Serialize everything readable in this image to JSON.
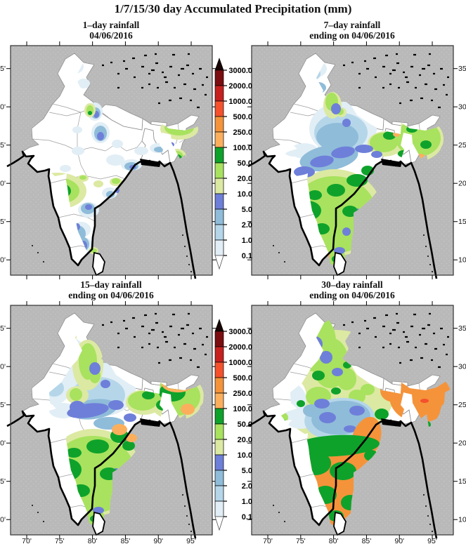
{
  "title": "1/7/15/30 day Accumulated Precipitation (mm)",
  "panels": [
    {
      "id": "p1",
      "title_line1": "1–day rainfall",
      "title_line2": "04/06/2016",
      "lat_side": "left",
      "lon_labels": false
    },
    {
      "id": "p2",
      "title_line1": "7–day rainfall",
      "title_line2": "ending on 04/06/2016",
      "lat_side": "right",
      "lon_labels": false
    },
    {
      "id": "p3",
      "title_line1": "15–day rainfall",
      "title_line2": "ending on 04/06/2016",
      "lat_side": "left",
      "lon_labels": true
    },
    {
      "id": "p4",
      "title_line1": "30–day rainfall",
      "title_line2": "ending on 04/06/2016",
      "lat_side": "right",
      "lon_labels": true
    }
  ],
  "axes": {
    "lat_ticks": [
      {
        "deg": 35,
        "label": "35'"
      },
      {
        "deg": 30,
        "label": "30'"
      },
      {
        "deg": 25,
        "label": "25'"
      },
      {
        "deg": 20,
        "label": "20'"
      },
      {
        "deg": 15,
        "label": "15'"
      },
      {
        "deg": 10,
        "label": "10'"
      }
    ],
    "lon_ticks": [
      {
        "deg": 70,
        "label": "70'"
      },
      {
        "deg": 75,
        "label": "75'"
      },
      {
        "deg": 80,
        "label": "80'"
      },
      {
        "deg": 85,
        "label": "85'"
      },
      {
        "deg": 90,
        "label": "90'"
      },
      {
        "deg": 95,
        "label": "95'"
      }
    ]
  },
  "legend": {
    "tick_labels": [
      "3000.0",
      "2000.0",
      "1000.0",
      "500.0",
      "250.0",
      "100.0",
      "50.0",
      "20.0",
      "10.0",
      "5.0",
      "2.0",
      "1.0",
      "0.1"
    ],
    "segment_colors_top_to_bottom": [
      "#7b0d10",
      "#c6201f",
      "#f4512c",
      "#f5933a",
      "#fbaf5d",
      "#0ea22b",
      "#a8e25e",
      "#dce9a2",
      "#6e7fd9",
      "#8fbcd9",
      "#b5d6e9",
      "#e1eef5"
    ],
    "arrow_top_color": "#170503",
    "arrow_bottom_color": "#ffffff"
  },
  "palette": {
    "lw": "#ffffff",
    "l01": "#e1eef5",
    "l1": "#b5d6e9",
    "l2": "#8fbcd9",
    "l5": "#6e7fd9",
    "l10": "#dce9a2",
    "l20": "#a8e25e",
    "l50": "#0ea22b",
    "l100": "#fbaf5d",
    "l250": "#f5933a",
    "l500": "#f4512c",
    "l1000": "#c6201f"
  },
  "chart_data": {
    "type": "heatmap",
    "subtype": "filled-contour precipitation maps over India (2x2 panels)",
    "title": "1/7/15/30 day Accumulated Precipitation (mm)",
    "units": "mm",
    "extent": {
      "lon_deg": [
        67.5,
        98.2
      ],
      "lat_deg": [
        8.0,
        38.0
      ]
    },
    "lon_ticks_deg": [
      70,
      75,
      80,
      85,
      90,
      95
    ],
    "lat_ticks_deg": [
      35,
      30,
      25,
      20,
      15,
      10
    ],
    "levels_mm": [
      0.1,
      1,
      2,
      5,
      10,
      20,
      50,
      100,
      250,
      500,
      1000,
      2000,
      3000
    ],
    "legend_position": "right of each left-hand panel, shared per row",
    "panels": [
      {
        "title": "1–day rainfall",
        "subtitle": "04/06/2016",
        "summary": "Mostly dry; 0.1–5 mm patches over Jammu-Kashmir and the north, scattered 1–20 mm over central India and Tamil Nadu; a 50–250 mm cell over interior Karnataka with 100–250 mm core; 10–100 mm over the Northeast."
      },
      {
        "title": "7–day rainfall",
        "subtitle": "ending on 04/06/2016",
        "summary": "20–100 mm over most of peninsular India with 100–250 mm cells on the southwest coast and Northeast; 1–10 mm band along the Indo-Gangetic plain; west Rajasthan mostly dry."
      },
      {
        "title": "15–day rainfall",
        "subtitle": "ending on 04/06/2016",
        "summary": "Widespread 10–100 mm over the peninsula, north and Northeast with 100–250 mm patches (Kerala coast, Odisha, Assam); 2–10 mm band across central India; far northwest mostly dry."
      },
      {
        "title": "30–day rainfall",
        "subtitle": "ending on 04/06/2016",
        "summary": "Nearly all of India wet; 100–500 mm over the south, east coast and the entire Northeast (local >500 mm); 2–20 mm core over central India; lightest totals over west Rajasthan and Gujarat."
      }
    ]
  }
}
